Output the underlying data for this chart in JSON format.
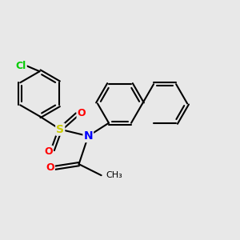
{
  "background_color": "#e8e8e8",
  "bond_color": "#000000",
  "bond_width": 1.5,
  "atom_colors": {
    "Cl": "#00cc00",
    "S": "#cccc00",
    "N": "#0000ff",
    "O": "#ff0000",
    "C": "#000000"
  },
  "font_size": 9
}
